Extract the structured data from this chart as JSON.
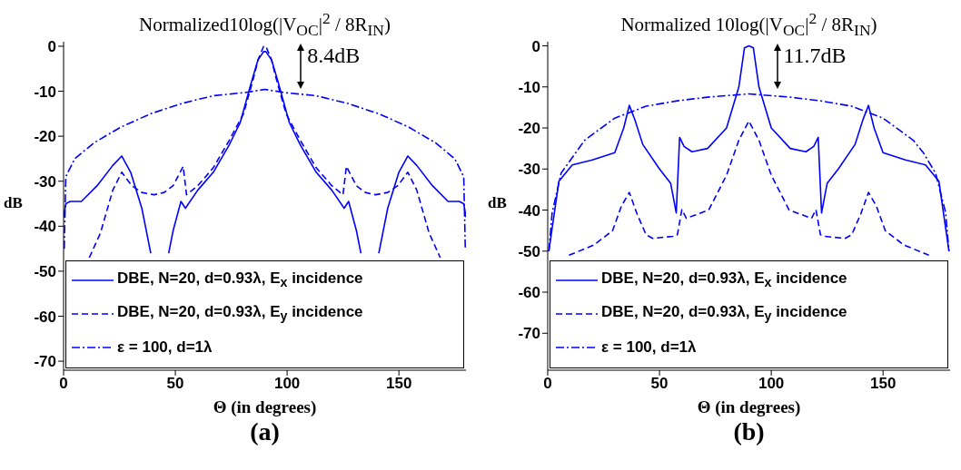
{
  "chart_data": [
    {
      "type": "line",
      "title": "Normalized10log(|V$_{OC}$|$^{2}$ / 8R$_{IN}$)",
      "xlabel": "Θ (in degrees)",
      "ylabel": "dB",
      "xlim": [
        0,
        180
      ],
      "xticks": [
        0,
        50,
        100,
        150
      ],
      "ylim": [
        -72,
        1
      ],
      "yticks": [
        -70,
        -60,
        -50,
        -40,
        -30,
        -20,
        -10,
        0
      ],
      "grid": false,
      "legend": "bottom",
      "annotations": [
        "8.4dB",
        "(a)"
      ],
      "series": [
        {
          "name": "DBE, N=20, d=0.93λ, E$_{x}$ incidence",
          "color": "#0000ff",
          "line_style": "solid",
          "x": [
            0,
            1,
            3,
            8,
            15,
            22,
            26,
            30,
            35,
            39,
            43,
            47,
            49,
            52.5,
            54.5,
            60,
            67,
            74,
            79,
            84,
            87,
            89.5,
            90,
            90.5,
            93,
            96,
            101,
            106,
            113,
            120,
            125.5,
            127.5,
            131,
            133,
            137,
            141,
            145,
            150,
            154,
            158,
            165,
            172,
            177,
            179,
            180
          ],
          "values": [
            -38,
            -35,
            -34.5,
            -34.5,
            -31,
            -26.5,
            -24.4,
            -28,
            -36,
            -46,
            null,
            -46,
            -41,
            -34.5,
            -36,
            -32,
            -28,
            -22,
            -17,
            -8,
            -3,
            -1.2,
            -1.2,
            -1.2,
            -3,
            -8,
            -17,
            -22,
            -28,
            -32,
            -36,
            -34.5,
            -41,
            -46,
            null,
            -46,
            -36,
            -28,
            -24.4,
            -26.5,
            -31,
            -34.5,
            -34.5,
            -35,
            -38
          ]
        },
        {
          "name": "DBE, N=20, d=0.93λ, E$_{y}$ incidence",
          "color": "#0000ff",
          "line_style": "dashed",
          "x": [
            11.5,
            16.5,
            22,
            26,
            30.5,
            35,
            40.5,
            45,
            49,
            53.5,
            55,
            60,
            67,
            74,
            80.5,
            85,
            87,
            89.5,
            90.5,
            93,
            95,
            99.5,
            106,
            113,
            120,
            125,
            126.5,
            131,
            135,
            139.5,
            145,
            149.5,
            154,
            158,
            163.5,
            168.5
          ],
          "values": [
            -47,
            -41.5,
            -32,
            -28,
            -31,
            -32.5,
            -33,
            -32.5,
            -31,
            -26.7,
            -33,
            -31,
            -27,
            -21,
            -15,
            -7,
            -3,
            0,
            0,
            -3,
            -7,
            -15,
            -21,
            -27,
            -31,
            -33,
            -26.7,
            -31,
            -32.5,
            -33,
            -32.5,
            -31,
            -28,
            -32,
            -41.5,
            -47
          ]
        },
        {
          "name": "ε = 100, d=1λ",
          "color": "#0000ff",
          "line_style": "dashdot",
          "x": [
            0.3,
            1,
            5,
            13.5,
            25.5,
            39,
            53,
            67,
            81,
            90,
            99,
            113,
            127,
            141,
            154.5,
            166.5,
            175,
            179,
            179.7
          ],
          "values": [
            -45,
            -29,
            -25,
            -21.5,
            -18,
            -15,
            -12.7,
            -11,
            -10.3,
            -9.6,
            -10.3,
            -11,
            -12.7,
            -15,
            -18,
            -21.5,
            -25,
            -29,
            -45
          ]
        }
      ]
    },
    {
      "type": "line",
      "title": "Normalized 10log(|V$_{OC}$|$^{2}$ / 8R$_{IN}$)",
      "xlabel": "Θ (in degrees)",
      "ylabel": "dB",
      "xlim": [
        0,
        180
      ],
      "xticks": [
        0,
        50,
        100,
        150
      ],
      "ylim": [
        -79,
        1
      ],
      "yticks": [
        -70,
        -60,
        -50,
        -40,
        -30,
        -20,
        -10,
        0
      ],
      "grid": false,
      "legend": "bottom",
      "annotations": [
        "11.7dB",
        "(b)"
      ],
      "series": [
        {
          "name": "DBE, N=20, d=0.93λ, E$_{x}$ incidence",
          "color": "#0000ff",
          "line_style": "solid",
          "x": [
            0.5,
            1.3,
            5,
            11,
            20,
            30,
            34,
            36.5,
            39,
            42.5,
            50,
            55,
            57.5,
            59,
            61,
            64.5,
            71.5,
            80,
            85.5,
            88,
            90,
            92,
            94.5,
            100,
            108.5,
            115.5,
            119,
            121,
            122.5,
            125,
            130,
            137.5,
            141,
            143.5,
            146,
            150,
            160,
            169,
            175,
            178.7,
            179.5
          ],
          "values": [
            -50,
            -47,
            -33,
            -29,
            -27.8,
            -26,
            -20,
            -14.5,
            -18,
            -24,
            -30,
            -33.5,
            -40.7,
            -22.3,
            -24.5,
            -25.8,
            -25,
            -20,
            -10,
            -0.5,
            0,
            -0.5,
            -10,
            -20,
            -25,
            -25.8,
            -24.5,
            -22.3,
            -40.7,
            -33.5,
            -30,
            -24,
            -18,
            -14.5,
            -20,
            -26,
            -27.8,
            -29,
            -33,
            -47,
            -50
          ]
        },
        {
          "name": "DBE, N=20, d=0.93λ, E$_{y}$ incidence",
          "color": "#0000ff",
          "line_style": "dashed",
          "x": [
            9.5,
            20.7,
            29,
            33,
            36.5,
            40,
            44,
            47,
            56,
            58,
            60,
            62,
            72,
            80,
            85.5,
            90,
            94.5,
            100,
            108,
            118,
            120,
            122,
            124,
            133,
            136,
            140,
            143.5,
            147,
            151,
            159.3,
            170.5
          ],
          "values": [
            -51,
            -48.5,
            -45,
            -39,
            -35.7,
            -41,
            -46,
            -46.9,
            -46.4,
            -46,
            -39.9,
            -42,
            -40,
            -31.5,
            -23,
            -18.3,
            -23,
            -31.5,
            -40,
            -42,
            -39.9,
            -46,
            -46.4,
            -46.9,
            -46,
            -41,
            -35.7,
            -39,
            -45,
            -48.5,
            -51
          ]
        },
        {
          "name": "ε = 100, d=1λ",
          "color": "#0000ff",
          "line_style": "dashdot",
          "x": [
            0.5,
            2,
            6,
            16.5,
            30,
            44,
            58,
            71.5,
            90,
            108.5,
            122,
            136,
            150,
            163.5,
            168,
            173.5,
            178,
            179.5
          ],
          "values": [
            -50,
            -40.6,
            -31,
            -23,
            -17.6,
            -14.7,
            -13.4,
            -12.5,
            -11.7,
            -12.5,
            -13.4,
            -14.7,
            -17.6,
            -23,
            -26,
            -31,
            -40.6,
            -50
          ]
        }
      ]
    }
  ]
}
